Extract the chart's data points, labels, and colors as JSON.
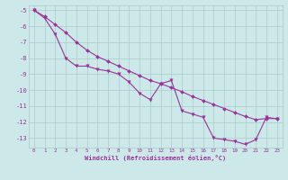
{
  "xlabel": "Windchill (Refroidissement éolien,°C)",
  "ylabel": "",
  "background_color": "#cce8e8",
  "grid_color": "#aacccc",
  "line_color": "#993399",
  "x_line1": [
    0,
    1,
    2,
    3,
    4,
    5,
    6,
    7,
    8,
    9,
    10,
    11,
    12,
    13,
    14,
    15,
    16,
    17,
    18,
    19,
    20,
    21,
    22,
    23
  ],
  "y_line1": [
    -5.0,
    -5.5,
    -6.5,
    -8.0,
    -8.5,
    -8.5,
    -8.7,
    -8.8,
    -9.0,
    -9.5,
    -10.2,
    -10.6,
    -9.6,
    -9.4,
    -11.3,
    -11.5,
    -11.7,
    -13.0,
    -13.1,
    -13.2,
    -13.4,
    -13.1,
    -11.7,
    -11.8
  ],
  "x_line2": [
    0,
    1,
    2,
    3,
    4,
    5,
    6,
    7,
    8,
    9,
    10,
    11,
    12,
    13,
    14,
    15,
    16,
    17,
    18,
    19,
    20,
    21,
    22,
    23
  ],
  "y_line2": [
    -5.0,
    -5.4,
    -5.9,
    -6.4,
    -7.0,
    -7.5,
    -7.9,
    -8.2,
    -8.5,
    -8.8,
    -9.1,
    -9.4,
    -9.6,
    -9.85,
    -10.1,
    -10.4,
    -10.65,
    -10.9,
    -11.15,
    -11.4,
    -11.65,
    -11.85,
    -11.78,
    -11.78
  ],
  "ylim": [
    -13.6,
    -4.7
  ],
  "xlim": [
    -0.5,
    23.5
  ],
  "yticks": [
    -5,
    -6,
    -7,
    -8,
    -9,
    -10,
    -11,
    -12,
    -13
  ],
  "xticks": [
    0,
    1,
    2,
    3,
    4,
    5,
    6,
    7,
    8,
    9,
    10,
    11,
    12,
    13,
    14,
    15,
    16,
    17,
    18,
    19,
    20,
    21,
    22,
    23
  ]
}
